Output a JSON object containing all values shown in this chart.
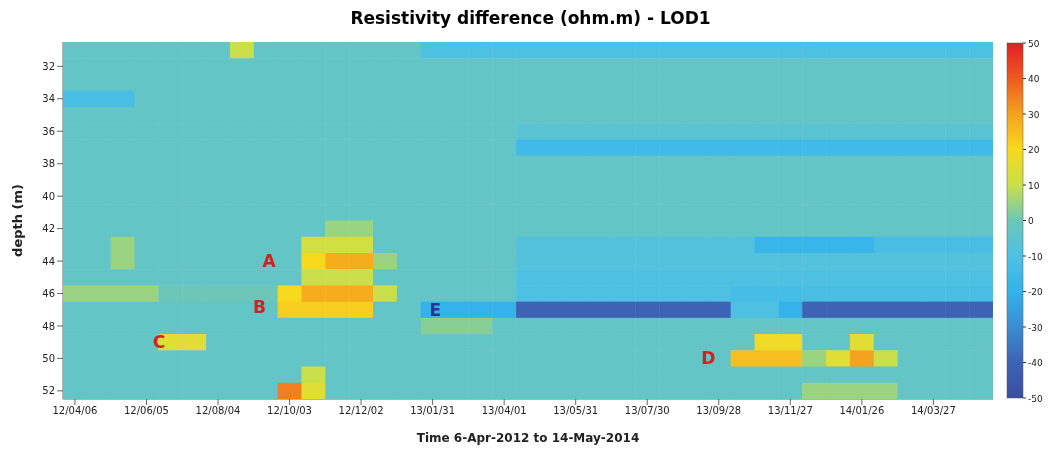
{
  "chart_data": {
    "type": "heatmap",
    "title": "Resistivity difference (ohm.m) - LOD1",
    "xlabel": "Time 6-Apr-2012 to 14-May-2014",
    "ylabel": "depth (m)",
    "categories": [
      "12/04/06",
      null,
      null,
      "12/06/05",
      null,
      null,
      "12/08/04",
      null,
      null,
      "12/10/03",
      null,
      null,
      "12/12/02",
      null,
      null,
      "13/01/31",
      null,
      null,
      "13/04/01",
      null,
      null,
      "13/05/31",
      null,
      null,
      "13/07/30",
      null,
      null,
      "13/09/28",
      null,
      null,
      "13/11/27",
      null,
      null,
      "14/01/26",
      null,
      null,
      "14/03/27",
      null,
      null
    ],
    "y_categories": [
      null,
      "32",
      null,
      "34",
      null,
      "36",
      null,
      "38",
      null,
      "40",
      null,
      "42",
      null,
      "44",
      null,
      "46",
      null,
      "48",
      null,
      "50",
      null,
      "52"
    ],
    "cells": [
      [
        -3,
        -3,
        -3,
        -3,
        -3,
        -3,
        -3,
        10,
        -3,
        -3,
        -3,
        -3,
        -3,
        -3,
        -3,
        -10,
        -10,
        -10,
        -10,
        -10,
        -10,
        -10,
        -10,
        -10,
        -10,
        -10,
        -10,
        -10,
        -10,
        -10,
        -10,
        -10,
        -10,
        -10,
        -10,
        -10,
        -10,
        -10,
        -10
      ],
      [
        -3,
        -3,
        -3,
        -3,
        -3,
        -3,
        -3,
        -3,
        -3,
        -3,
        -3,
        -3,
        -3,
        -3,
        -3,
        -3,
        -3,
        -3,
        -3,
        -3,
        -3,
        -3,
        -3,
        -3,
        -3,
        -3,
        -3,
        -3,
        -3,
        -3,
        -3,
        -3,
        -3,
        -3,
        -3,
        -3,
        -3,
        -3,
        -3
      ],
      [
        -3,
        -3,
        -3,
        -3,
        -3,
        -3,
        -3,
        -3,
        -3,
        -3,
        -3,
        -3,
        -3,
        -3,
        -3,
        -3,
        -3,
        -3,
        -3,
        -3,
        -3,
        -3,
        -3,
        -3,
        -3,
        -3,
        -3,
        -3,
        -3,
        -3,
        -3,
        -3,
        -3,
        -3,
        -3,
        -3,
        -3,
        -3,
        -3
      ],
      [
        -12,
        -12,
        -12,
        -3,
        -3,
        -3,
        -3,
        -3,
        -3,
        -3,
        -3,
        -3,
        -3,
        -3,
        -3,
        -3,
        -3,
        -3,
        -3,
        -3,
        -3,
        -3,
        -3,
        -3,
        -3,
        -3,
        -3,
        -3,
        -3,
        -3,
        -3,
        -3,
        -3,
        -3,
        -3,
        -3,
        -3,
        -3,
        -3
      ],
      [
        -3,
        -3,
        -3,
        -3,
        -3,
        -3,
        -3,
        -3,
        -3,
        -3,
        -3,
        -3,
        -3,
        -3,
        -3,
        -3,
        -3,
        -3,
        -3,
        -3,
        -3,
        -3,
        -3,
        -3,
        -3,
        -3,
        -3,
        -3,
        -3,
        -3,
        -3,
        -3,
        -3,
        -3,
        -3,
        -3,
        -3,
        -3,
        -3
      ],
      [
        -3,
        -3,
        -3,
        -3,
        -3,
        -3,
        -3,
        -3,
        -3,
        -3,
        -3,
        -3,
        -3,
        -3,
        -3,
        -3,
        -3,
        -3,
        -3,
        -6,
        -6,
        -6,
        -6,
        -6,
        -6,
        -6,
        -6,
        -6,
        -6,
        -6,
        -6,
        -6,
        -6,
        -6,
        -6,
        -6,
        -6,
        -6,
        -6
      ],
      [
        -3,
        -3,
        -3,
        -3,
        -3,
        -3,
        -3,
        -3,
        -3,
        -3,
        -3,
        -3,
        -3,
        -3,
        -3,
        -3,
        -3,
        -3,
        -3,
        -15,
        -15,
        -15,
        -15,
        -15,
        -15,
        -15,
        -15,
        -15,
        -15,
        -15,
        -15,
        -15,
        -15,
        -15,
        -15,
        -15,
        -15,
        -15,
        -15
      ],
      [
        -3,
        -3,
        -3,
        -3,
        -3,
        -3,
        -3,
        -3,
        -3,
        -3,
        -3,
        -3,
        -3,
        -3,
        -3,
        -3,
        -3,
        -3,
        -3,
        -3,
        -3,
        -3,
        -3,
        -3,
        -3,
        -3,
        -3,
        -3,
        -3,
        -3,
        -3,
        -3,
        -3,
        -3,
        -3,
        -3,
        -3,
        -3,
        -3
      ],
      [
        -3,
        -3,
        -3,
        -3,
        -3,
        -3,
        -3,
        -3,
        -3,
        -3,
        -3,
        -3,
        -3,
        -3,
        -3,
        -3,
        -3,
        -3,
        -3,
        -3,
        -3,
        -3,
        -3,
        -3,
        -3,
        -3,
        -3,
        -3,
        -3,
        -3,
        -3,
        -3,
        -3,
        -3,
        -3,
        -3,
        -3,
        -3,
        -3
      ],
      [
        -3,
        -3,
        -3,
        -3,
        -3,
        -3,
        -3,
        -3,
        -3,
        -3,
        -3,
        -3,
        -3,
        -3,
        -3,
        -3,
        -3,
        -3,
        -3,
        -3,
        -3,
        -3,
        -3,
        -3,
        -3,
        -3,
        -3,
        -3,
        -3,
        -3,
        -3,
        -3,
        -3,
        -3,
        -3,
        -3,
        -3,
        -3,
        -3
      ],
      [
        -3,
        -3,
        -3,
        -3,
        -3,
        -3,
        -3,
        -3,
        -3,
        -3,
        -3,
        -3,
        -3,
        -3,
        -3,
        -3,
        -3,
        -3,
        -3,
        -3,
        -3,
        -3,
        -3,
        -3,
        -3,
        -3,
        -3,
        -3,
        -3,
        -3,
        -3,
        -3,
        -3,
        -3,
        -3,
        -3,
        -3,
        -3,
        -3
      ],
      [
        -3,
        -3,
        -3,
        -3,
        -3,
        -3,
        -3,
        -3,
        -3,
        -3,
        -3,
        5,
        5,
        -3,
        -3,
        -3,
        -3,
        -3,
        -3,
        -3,
        -3,
        -3,
        -3,
        -3,
        -3,
        -3,
        -3,
        -3,
        -3,
        -3,
        -3,
        -3,
        -3,
        -3,
        -3,
        -3,
        -3,
        -3,
        -3
      ],
      [
        -3,
        -3,
        5,
        -3,
        -3,
        -3,
        -3,
        -3,
        -3,
        -3,
        12,
        12,
        12,
        -3,
        -3,
        -3,
        -3,
        -3,
        -3,
        -8,
        -8,
        -8,
        -8,
        -8,
        -8,
        -8,
        -8,
        -8,
        -8,
        -18,
        -18,
        -18,
        -18,
        -18,
        -12,
        -12,
        -12,
        -12,
        -12
      ],
      [
        -3,
        -3,
        5,
        -3,
        -3,
        -3,
        -3,
        -3,
        -3,
        -3,
        20,
        28,
        28,
        5,
        -3,
        -3,
        -3,
        -3,
        -3,
        -8,
        -8,
        -8,
        -8,
        -8,
        -8,
        -8,
        -8,
        -8,
        -8,
        -8,
        -8,
        -8,
        -8,
        -8,
        -8,
        -8,
        -8,
        -8,
        -8
      ],
      [
        -3,
        -3,
        -3,
        -3,
        -3,
        -3,
        -3,
        -3,
        -3,
        -3,
        10,
        10,
        10,
        -3,
        -3,
        -3,
        -3,
        -3,
        -3,
        -10,
        -10,
        -10,
        -10,
        -10,
        -10,
        -10,
        -10,
        -10,
        -10,
        -10,
        -10,
        -10,
        -10,
        -10,
        -10,
        -10,
        -10,
        -10,
        -10
      ],
      [
        5,
        5,
        5,
        5,
        0,
        0,
        0,
        0,
        0,
        20,
        28,
        28,
        28,
        10,
        -3,
        -3,
        -3,
        -3,
        -3,
        -10,
        -10,
        -10,
        -10,
        -10,
        -10,
        -10,
        -10,
        -10,
        -13,
        -13,
        -13,
        -12,
        -12,
        -12,
        -12,
        -12,
        -12,
        -12,
        -12
      ],
      [
        -3,
        -3,
        -3,
        -3,
        -3,
        -3,
        -3,
        -3,
        -3,
        22,
        22,
        22,
        22,
        -3,
        -3,
        -20,
        -20,
        -20,
        -20,
        -40,
        -40,
        -40,
        -40,
        -40,
        -40,
        -40,
        -40,
        -40,
        -10,
        -10,
        -20,
        -40,
        -40,
        -40,
        -40,
        -40,
        -40,
        -40,
        -40
      ],
      [
        -3,
        -3,
        -3,
        -3,
        -3,
        -3,
        -3,
        -3,
        -3,
        -3,
        -3,
        -3,
        -3,
        -3,
        -3,
        3,
        3,
        3,
        -3,
        -3,
        -3,
        -3,
        -3,
        -3,
        -3,
        -3,
        -3,
        -3,
        -3,
        -3,
        -3,
        -3,
        -3,
        -3,
        -3,
        -3,
        -3,
        -3,
        -3
      ],
      [
        -3,
        -3,
        -3,
        -3,
        15,
        15,
        -3,
        -3,
        -3,
        -3,
        -3,
        -3,
        -3,
        -3,
        -3,
        -3,
        -3,
        -3,
        -3,
        -3,
        -3,
        -3,
        -3,
        -3,
        -3,
        -3,
        -3,
        -3,
        -3,
        18,
        18,
        -3,
        -3,
        15,
        -3,
        -3,
        -3,
        -3,
        -3
      ],
      [
        -3,
        -3,
        -3,
        -3,
        -3,
        -3,
        -3,
        -3,
        -3,
        -3,
        -3,
        -3,
        -3,
        -3,
        -3,
        -3,
        -3,
        -3,
        -3,
        -3,
        -3,
        -3,
        -3,
        -3,
        -3,
        -3,
        -3,
        -3,
        25,
        25,
        25,
        5,
        15,
        30,
        10,
        -3,
        -3,
        -3,
        -3
      ],
      [
        -3,
        -3,
        -3,
        -3,
        -3,
        -3,
        -3,
        -3,
        -3,
        -3,
        10,
        -3,
        -3,
        -3,
        -3,
        -3,
        -3,
        -3,
        -3,
        -3,
        -3,
        -3,
        -3,
        -3,
        -3,
        -3,
        -3,
        -3,
        -3,
        -3,
        -3,
        -3,
        -3,
        -3,
        -3,
        -3,
        -3,
        -3,
        -3
      ],
      [
        -3,
        -3,
        -3,
        -3,
        -3,
        -3,
        -3,
        -3,
        -3,
        35,
        15,
        -3,
        -3,
        -3,
        -3,
        -3,
        -3,
        -3,
        -3,
        -3,
        -3,
        -3,
        -3,
        -3,
        -3,
        -3,
        -3,
        -3,
        -3,
        -3,
        -3,
        5,
        5,
        5,
        5,
        -3,
        -3,
        -3,
        -3
      ]
    ],
    "clim": [
      -50,
      50
    ],
    "cticks": [
      -50,
      -40,
      -30,
      -20,
      -10,
      0,
      10,
      20,
      30,
      40,
      50
    ],
    "annotations": [
      "A",
      "B",
      "C",
      "D",
      "E"
    ]
  }
}
